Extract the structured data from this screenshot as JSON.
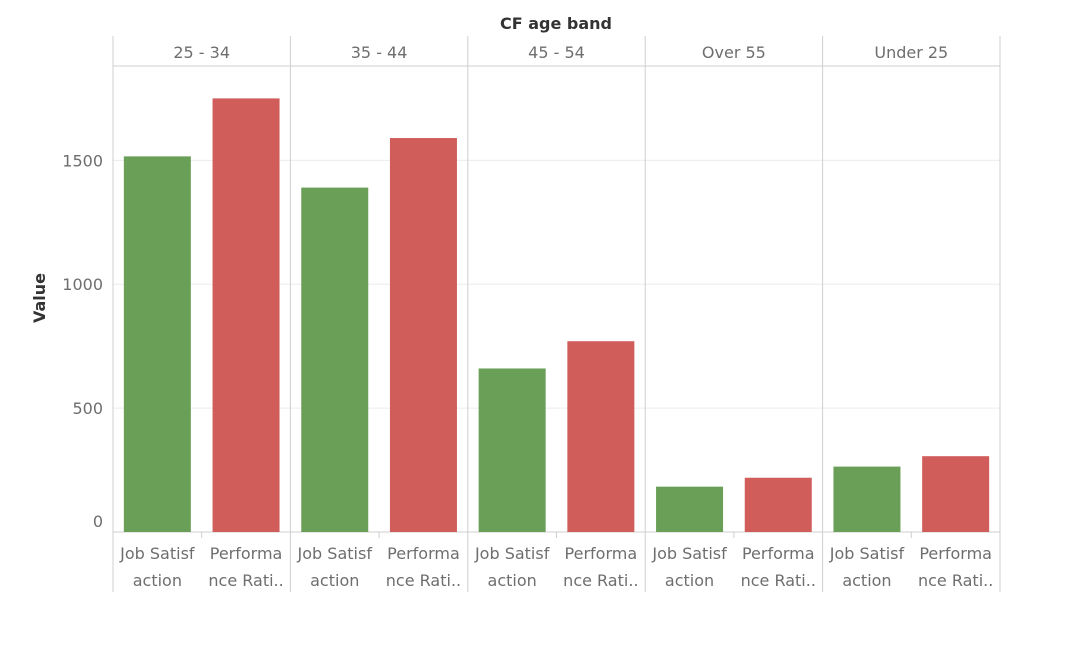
{
  "chart_data": {
    "type": "bar",
    "facet_title": "CF age band",
    "ylabel": "Value",
    "ylim": [
      0,
      1800
    ],
    "yticks": [
      0,
      500,
      1000,
      1500
    ],
    "grid": true,
    "legend": "none",
    "facets": [
      {
        "name": "25 - 34",
        "bars": [
          {
            "category": "Job Satisfaction",
            "label_lines": [
              "Job Satisf",
              "action"
            ],
            "value": 1516,
            "color": "#6a9f58"
          },
          {
            "category": "Performance Rating",
            "label_lines": [
              "Performa",
              "nce Rati.."
            ],
            "value": 1750,
            "color": "#d05d5a"
          }
        ]
      },
      {
        "name": "35 - 44",
        "bars": [
          {
            "category": "Job Satisfaction",
            "label_lines": [
              "Job Satisf",
              "action"
            ],
            "value": 1390,
            "color": "#6a9f58"
          },
          {
            "category": "Performance Rating",
            "label_lines": [
              "Performa",
              "nce Rati.."
            ],
            "value": 1590,
            "color": "#d05d5a"
          }
        ]
      },
      {
        "name": "45 - 54",
        "bars": [
          {
            "category": "Job Satisfaction",
            "label_lines": [
              "Job Satisf",
              "action"
            ],
            "value": 660,
            "color": "#6a9f58"
          },
          {
            "category": "Performance Rating",
            "label_lines": [
              "Performa",
              "nce Rati.."
            ],
            "value": 770,
            "color": "#d05d5a"
          }
        ]
      },
      {
        "name": "Over 55",
        "bars": [
          {
            "category": "Job Satisfaction",
            "label_lines": [
              "Job Satisf",
              "action"
            ],
            "value": 183,
            "color": "#6a9f58"
          },
          {
            "category": "Performance Rating",
            "label_lines": [
              "Performa",
              "nce Rati.."
            ],
            "value": 219,
            "color": "#d05d5a"
          }
        ]
      },
      {
        "name": "Under 25",
        "bars": [
          {
            "category": "Job Satisfaction",
            "label_lines": [
              "Job Satisf",
              "action"
            ],
            "value": 264,
            "color": "#6a9f58"
          },
          {
            "category": "Performance Rating",
            "label_lines": [
              "Performa",
              "nce Rati.."
            ],
            "value": 306,
            "color": "#d05d5a"
          }
        ]
      }
    ]
  }
}
